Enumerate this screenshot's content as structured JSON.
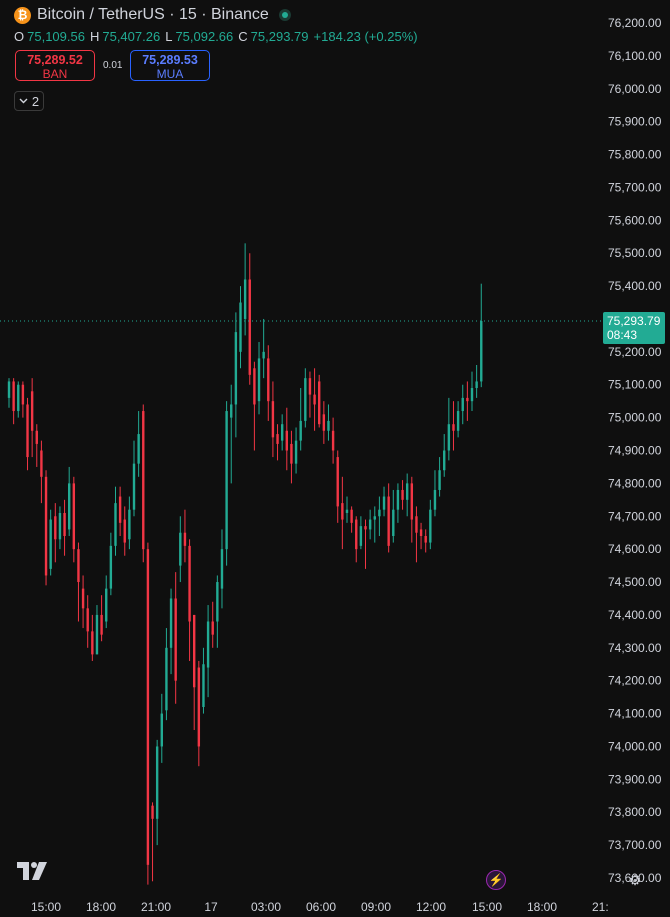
{
  "header": {
    "title": "Bitcoin / TetherUS · 15 · Binance",
    "coin_symbol": "₿",
    "ohlc": [
      {
        "key": "O",
        "value": "75,109.56"
      },
      {
        "key": "H",
        "value": "75,407.26"
      },
      {
        "key": "L",
        "value": "75,092.66"
      },
      {
        "key": "C",
        "value": "75,293.79"
      }
    ],
    "change": "+184.23 (+0.25%)"
  },
  "trade": {
    "sell_price": "75,289.52",
    "sell_label": "BAN",
    "spread": "0.01",
    "buy_price": "75,289.53",
    "buy_label": "MUA"
  },
  "indicators": {
    "count": "2"
  },
  "colors": {
    "up": "#22ab94",
    "down": "#f23645",
    "background": "#0f0f0f",
    "text": "#d1d4dc"
  },
  "icons": {
    "logo": "tradingview-logo-icon",
    "bolt": "lightning-icon",
    "settings": "gear-icon"
  },
  "chart_data": {
    "type": "candlestick",
    "interval": "15",
    "ylim": [
      73550,
      76250
    ],
    "y_ticks": [
      "76,200.00",
      "76,100.00",
      "76,000.00",
      "75,900.00",
      "75,800.00",
      "75,700.00",
      "75,600.00",
      "75,500.00",
      "75,400.00",
      "75,300.00",
      "75,200.00",
      "75,100.00",
      "75,000.00",
      "74,900.00",
      "74,800.00",
      "74,700.00",
      "74,600.00",
      "74,500.00",
      "74,400.00",
      "74,300.00",
      "74,200.00",
      "74,100.00",
      "74,000.00",
      "73,900.00",
      "73,800.00",
      "73,700.00",
      "73,600.00"
    ],
    "x_ticks": [
      "15:00",
      "18:00",
      "21:00",
      "17",
      "03:00",
      "06:00",
      "09:00",
      "12:00",
      "15:00",
      "18:00",
      "21:"
    ],
    "current_price": {
      "value": 75293.79,
      "label": "75,293.79",
      "countdown": "08:43"
    },
    "candles": [
      [
        75060,
        75110,
        75030,
        75120
      ],
      [
        75110,
        75020,
        74980,
        75120
      ],
      [
        75020,
        75100,
        75000,
        75110
      ],
      [
        75100,
        75040,
        75000,
        75110
      ],
      [
        75040,
        74880,
        74840,
        75060
      ],
      [
        75080,
        74960,
        74880,
        75120
      ],
      [
        74960,
        74920,
        74850,
        74980
      ],
      [
        74900,
        74820,
        74740,
        74930
      ],
      [
        74820,
        74520,
        74490,
        74840
      ],
      [
        74540,
        74690,
        74520,
        74720
      ],
      [
        74700,
        74630,
        74560,
        74740
      ],
      [
        74630,
        74710,
        74600,
        74730
      ],
      [
        74710,
        74640,
        74580,
        74750
      ],
      [
        74660,
        74800,
        74640,
        74850
      ],
      [
        74800,
        74600,
        74560,
        74820
      ],
      [
        74600,
        74500,
        74380,
        74620
      ],
      [
        74480,
        74420,
        74360,
        74520
      ],
      [
        74420,
        74350,
        74300,
        74460
      ],
      [
        74350,
        74280,
        74260,
        74400
      ],
      [
        74280,
        74400,
        74280,
        74430
      ],
      [
        74400,
        74340,
        74320,
        74460
      ],
      [
        74380,
        74480,
        74360,
        74520
      ],
      [
        74480,
        74610,
        74460,
        74650
      ],
      [
        74610,
        74740,
        74580,
        74790
      ],
      [
        74760,
        74680,
        74640,
        74790
      ],
      [
        74690,
        74620,
        74580,
        74730
      ],
      [
        74630,
        74720,
        74600,
        74760
      ],
      [
        74720,
        74860,
        74700,
        74930
      ],
      [
        74860,
        74950,
        74820,
        75020
      ],
      [
        75020,
        74600,
        74560,
        75040
      ],
      [
        74600,
        73640,
        73580,
        74620
      ],
      [
        73820,
        73780,
        73590,
        73830
      ],
      [
        73780,
        74000,
        73700,
        74020
      ],
      [
        74000,
        74100,
        73950,
        74160
      ],
      [
        74110,
        74300,
        74080,
        74360
      ],
      [
        74300,
        74450,
        74220,
        74480
      ],
      [
        74450,
        74200,
        74130,
        74530
      ],
      [
        74550,
        74650,
        74500,
        74700
      ],
      [
        74650,
        74610,
        74560,
        74720
      ],
      [
        74610,
        74380,
        74260,
        74630
      ],
      [
        74400,
        74180,
        74050,
        74400
      ],
      [
        74240,
        74000,
        73940,
        74260
      ],
      [
        74120,
        74250,
        74100,
        74300
      ],
      [
        74240,
        74380,
        74150,
        74430
      ],
      [
        74380,
        74340,
        74300,
        74440
      ],
      [
        74380,
        74500,
        74300,
        74520
      ],
      [
        74480,
        74600,
        74420,
        74660
      ],
      [
        74600,
        75020,
        74550,
        75050
      ],
      [
        75000,
        75040,
        74800,
        75100
      ],
      [
        75040,
        75260,
        74940,
        75320
      ],
      [
        75200,
        75350,
        75150,
        75400
      ],
      [
        75300,
        75420,
        75250,
        75530
      ],
      [
        75420,
        75130,
        75100,
        75500
      ],
      [
        75150,
        75040,
        74900,
        75170
      ],
      [
        75050,
        75180,
        75010,
        75230
      ],
      [
        75180,
        75200,
        75120,
        75300
      ],
      [
        75180,
        75050,
        74990,
        75220
      ],
      [
        75050,
        74940,
        74880,
        75110
      ],
      [
        74950,
        74920,
        74870,
        74980
      ],
      [
        74930,
        74980,
        74900,
        75010
      ],
      [
        74960,
        74900,
        74840,
        75030
      ],
      [
        74920,
        74860,
        74800,
        74960
      ],
      [
        74860,
        74930,
        74830,
        74970
      ],
      [
        74930,
        74990,
        74900,
        75090
      ],
      [
        74990,
        75120,
        74970,
        75150
      ],
      [
        75120,
        75070,
        75000,
        75140
      ],
      [
        75070,
        75040,
        74960,
        75150
      ],
      [
        75110,
        74980,
        74970,
        75130
      ],
      [
        75010,
        74960,
        74920,
        75050
      ],
      [
        74960,
        74990,
        74930,
        75040
      ],
      [
        74960,
        74900,
        74860,
        75000
      ],
      [
        74880,
        74730,
        74680,
        74900
      ],
      [
        74740,
        74690,
        74600,
        74820
      ],
      [
        74710,
        74720,
        74680,
        74760
      ],
      [
        74720,
        74680,
        74650,
        74730
      ],
      [
        74690,
        74600,
        74560,
        74700
      ],
      [
        74610,
        74670,
        74600,
        74700
      ],
      [
        74670,
        74660,
        74540,
        74690
      ],
      [
        74660,
        74690,
        74630,
        74720
      ],
      [
        74690,
        74700,
        74620,
        74730
      ],
      [
        74700,
        74720,
        74640,
        74760
      ],
      [
        74720,
        74760,
        74700,
        74790
      ],
      [
        74760,
        74610,
        74590,
        74800
      ],
      [
        74640,
        74720,
        74620,
        74780
      ],
      [
        74720,
        74780,
        74680,
        74800
      ],
      [
        74780,
        74750,
        74720,
        74810
      ],
      [
        74750,
        74800,
        74700,
        74830
      ],
      [
        74800,
        74690,
        74620,
        74820
      ],
      [
        74700,
        74650,
        74560,
        74730
      ],
      [
        74660,
        74640,
        74600,
        74680
      ],
      [
        74640,
        74620,
        74590,
        74660
      ],
      [
        74620,
        74720,
        74600,
        74750
      ],
      [
        74720,
        74780,
        74700,
        74840
      ],
      [
        74780,
        74840,
        74760,
        74880
      ],
      [
        74840,
        74900,
        74820,
        74950
      ],
      [
        74900,
        74980,
        74870,
        75060
      ],
      [
        74980,
        74960,
        74900,
        75050
      ],
      [
        74960,
        75020,
        74940,
        75050
      ],
      [
        75020,
        75060,
        74980,
        75100
      ],
      [
        75060,
        75050,
        74990,
        75110
      ],
      [
        75050,
        75090,
        75020,
        75140
      ],
      [
        75090,
        75110,
        75060,
        75160
      ],
      [
        75110,
        75293.79,
        75092.66,
        75407.26
      ]
    ]
  }
}
